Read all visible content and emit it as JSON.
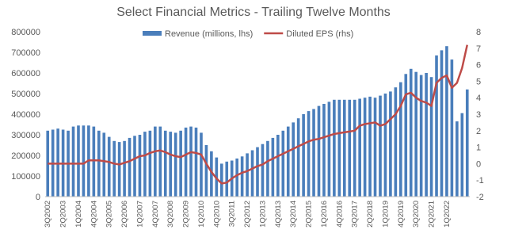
{
  "chart_data": {
    "type": "bar_line",
    "title": "Select Financial Metrics - Trailing Twelve Months",
    "categories": [
      "3Q2002",
      null,
      null,
      "2Q2003",
      null,
      null,
      "1Q2004",
      null,
      null,
      "4Q2004",
      null,
      null,
      "3Q2005",
      null,
      null,
      "2Q2006",
      null,
      null,
      "1Q2007",
      null,
      null,
      "4Q2007",
      null,
      null,
      "3Q2008",
      null,
      null,
      "2Q2009",
      null,
      null,
      "1Q2010",
      null,
      null,
      "4Q2010",
      null,
      null,
      "3Q2011",
      null,
      null,
      "2Q2012",
      null,
      null,
      "1Q2013",
      null,
      null,
      "4Q2013",
      null,
      null,
      "3Q2014",
      null,
      null,
      "2Q2015",
      null,
      null,
      "1Q2016",
      null,
      null,
      "4Q2016",
      null,
      null,
      "3Q2017",
      null,
      null,
      "2Q2018",
      null,
      null,
      "1Q2019",
      null,
      null,
      "4Q2019",
      null,
      null,
      "3Q2020",
      null,
      null,
      "2Q2021",
      null,
      null,
      "1Q2022",
      null,
      null,
      null,
      null
    ],
    "series": [
      {
        "name": "Revenue (millions, lhs)",
        "color": "#4a7ebb",
        "kind": "bar",
        "values": [
          320000,
          325000,
          330000,
          325000,
          320000,
          340000,
          345000,
          345000,
          345000,
          340000,
          320000,
          310000,
          290000,
          270000,
          265000,
          270000,
          285000,
          295000,
          300000,
          315000,
          320000,
          340000,
          340000,
          320000,
          315000,
          310000,
          320000,
          335000,
          340000,
          335000,
          310000,
          250000,
          220000,
          190000,
          160000,
          170000,
          175000,
          185000,
          195000,
          210000,
          225000,
          240000,
          255000,
          270000,
          285000,
          300000,
          320000,
          340000,
          360000,
          380000,
          400000,
          415000,
          425000,
          440000,
          450000,
          460000,
          470000,
          470000,
          470000,
          470000,
          470000,
          475000,
          480000,
          485000,
          480000,
          490000,
          500000,
          510000,
          530000,
          555000,
          595000,
          620000,
          605000,
          590000,
          600000,
          580000,
          685000,
          710000,
          730000,
          665000,
          365000,
          405000,
          520000
        ]
      },
      {
        "name": "Diluted EPS (rhs)",
        "color": "#be4b48",
        "kind": "line",
        "axis": "y2",
        "values": [
          0,
          0,
          0,
          0,
          0,
          0,
          0,
          0,
          0.2,
          0.2,
          0.2,
          0.15,
          0.1,
          0,
          -0.05,
          0.05,
          0.15,
          0.3,
          0.45,
          0.5,
          0.65,
          0.75,
          0.8,
          0.7,
          0.55,
          0.45,
          0.4,
          0.55,
          0.7,
          0.65,
          0.55,
          0,
          -0.5,
          -0.9,
          -1.2,
          -1.15,
          -0.9,
          -0.7,
          -0.55,
          -0.45,
          -0.3,
          -0.15,
          -0.05,
          0.15,
          0.3,
          0.45,
          0.6,
          0.75,
          0.9,
          1.05,
          1.2,
          1.35,
          1.45,
          1.5,
          1.6,
          1.7,
          1.8,
          1.85,
          1.9,
          1.95,
          2.0,
          2.3,
          2.4,
          2.45,
          2.5,
          2.3,
          2.4,
          2.7,
          3.0,
          3.5,
          4.2,
          4.3,
          4.0,
          3.8,
          3.7,
          3.5,
          4.9,
          5.2,
          5.35,
          4.6,
          4.9,
          5.8,
          7.2
        ]
      }
    ],
    "ylim": [
      0,
      800000
    ],
    "yticks": [
      0,
      100000,
      200000,
      300000,
      400000,
      500000,
      600000,
      700000,
      800000
    ],
    "y2lim": [
      -2,
      8
    ],
    "y2ticks": [
      -2,
      -1,
      0,
      1,
      2,
      3,
      4,
      5,
      6,
      7,
      8
    ],
    "legend": "top"
  }
}
